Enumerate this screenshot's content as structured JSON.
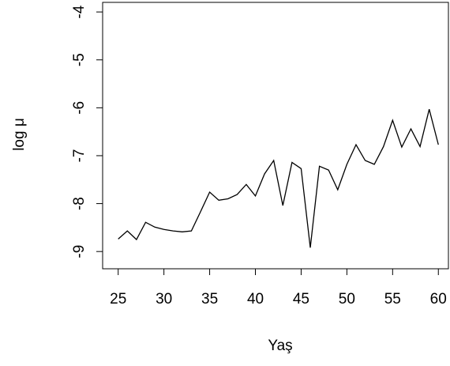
{
  "chart_data": {
    "type": "line",
    "xlabel": "Yaş",
    "ylabel": "log μ",
    "x": [
      25,
      26,
      27,
      28,
      29,
      30,
      31,
      32,
      33,
      34,
      35,
      36,
      37,
      38,
      39,
      40,
      41,
      42,
      43,
      44,
      45,
      46,
      47,
      48,
      49,
      50,
      51,
      52,
      53,
      54,
      55,
      56,
      57,
      58,
      59,
      60
    ],
    "series": [
      {
        "color": "#000000",
        "values": [
          -8.74,
          -8.57,
          -8.75,
          -8.39,
          -8.49,
          -8.54,
          -8.57,
          -8.59,
          -8.57,
          -8.17,
          -7.76,
          -7.93,
          -7.9,
          -7.81,
          -7.6,
          -7.84,
          -7.38,
          -7.1,
          -8.04,
          -7.14,
          -7.27,
          -8.92,
          -7.22,
          -7.3,
          -7.71,
          -7.18,
          -6.77,
          -7.1,
          -7.18,
          -6.81,
          -6.26,
          -6.82,
          -6.44,
          -6.81,
          -6.03,
          -6.77
        ]
      }
    ],
    "xlim": [
      23.3,
      61.1
    ],
    "ylim": [
      -9.36,
      -3.8
    ],
    "xticks": [
      25,
      30,
      35,
      40,
      45,
      50,
      55,
      60
    ],
    "yticks": [
      -9,
      -8,
      -7,
      -6,
      -5,
      -4
    ]
  }
}
